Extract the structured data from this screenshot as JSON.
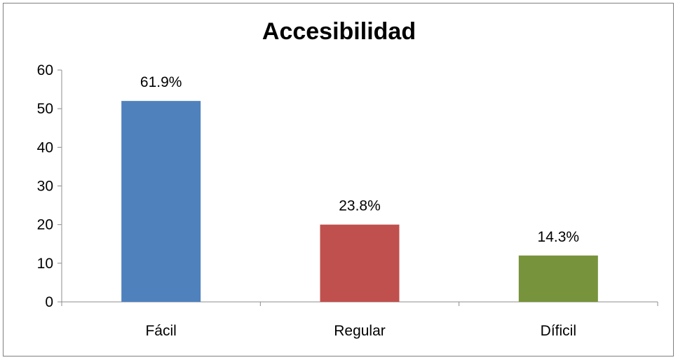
{
  "chart_data": {
    "type": "bar",
    "title": "Accesibilidad",
    "xlabel": "",
    "ylabel": "",
    "categories": [
      "Fácil",
      "Regular",
      "Díficil"
    ],
    "values": [
      52,
      20,
      12
    ],
    "data_labels": [
      "61.9%",
      "23.8%",
      "14.3%"
    ],
    "colors": [
      "#4f81bd",
      "#c0504d",
      "#77933c"
    ],
    "ylim": [
      0,
      60
    ],
    "yticks": [
      "0",
      "10",
      "20",
      "30",
      "40",
      "50",
      "60"
    ],
    "grid": false,
    "legend": "none"
  }
}
